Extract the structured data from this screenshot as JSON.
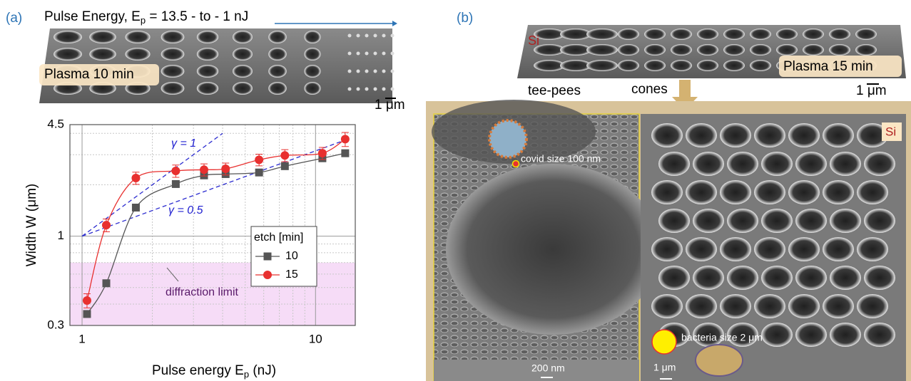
{
  "panel_a": {
    "label": "(a)",
    "title": [
      "Pulse Energy, E",
      "p",
      " = 13.5 - to - 1 nJ"
    ],
    "image_label": "Plasma 10 min",
    "scale_bar": "1 μm"
  },
  "chart_data": {
    "type": "line",
    "xlabel": [
      "Pulse energy E",
      "p",
      " (nJ)"
    ],
    "ylabel": "Width W (μm)",
    "log_x": true,
    "log_y": true,
    "xlim": [
      0.887,
      14.8
    ],
    "ylim": [
      0.3,
      4.5
    ],
    "xticks": [
      1,
      10
    ],
    "yticks": [
      0.3,
      1,
      4.5
    ],
    "x_minor_ticks": [
      2,
      3,
      4,
      5,
      6,
      7,
      8,
      9
    ],
    "y_minor_ticks": [
      0.4,
      0.5,
      0.6,
      0.7,
      0.8,
      0.9,
      2,
      3,
      4
    ],
    "grid": true,
    "legend_title": "etch [min]",
    "legend_position": "center-right",
    "series": [
      {
        "name": "10",
        "color": "#555555",
        "marker": "square",
        "x": [
          1.05,
          1.27,
          1.7,
          2.52,
          3.33,
          4.12,
          5.73,
          7.39,
          10.7,
          13.4
        ],
        "values": [
          0.35,
          0.53,
          1.47,
          2.02,
          2.27,
          2.31,
          2.36,
          2.57,
          2.86,
          3.06
        ]
      },
      {
        "name": "15",
        "color": "#e8302f",
        "marker": "circle",
        "x": [
          1.05,
          1.27,
          1.7,
          2.52,
          3.33,
          4.12,
          5.73,
          7.39,
          10.7,
          13.4
        ],
        "values": [
          0.42,
          1.16,
          2.19,
          2.41,
          2.45,
          2.48,
          2.8,
          2.97,
          3.06,
          3.7
        ],
        "errors": [
          0.04,
          0.1,
          0.18,
          0.2,
          0.2,
          0.2,
          0.22,
          0.24,
          0.25,
          0.35
        ]
      }
    ],
    "reference_lines": [
      {
        "label": "γ = 1",
        "x": [
          1,
          4
        ],
        "y": [
          1,
          4
        ]
      },
      {
        "label": "γ = 0.5",
        "x": [
          1,
          13
        ],
        "y": [
          1,
          3.6
        ]
      }
    ],
    "shaded_band": {
      "label": "diffraction limit",
      "ylim": [
        0.3,
        0.7
      ]
    }
  },
  "panel_b": {
    "label": "(b)",
    "material": "Si",
    "image_label": "Plasma 15 min",
    "left_label": "tee-pees",
    "right_label": "cones",
    "scale_bar": "1 μm",
    "zoom_left": {
      "annotation": "covid size 100 nm",
      "scale_bar": "200 nm"
    },
    "zoom_right": {
      "material": "Si",
      "annotation": "bacteria size 2 μm",
      "scale_bar": "1 μm"
    }
  }
}
